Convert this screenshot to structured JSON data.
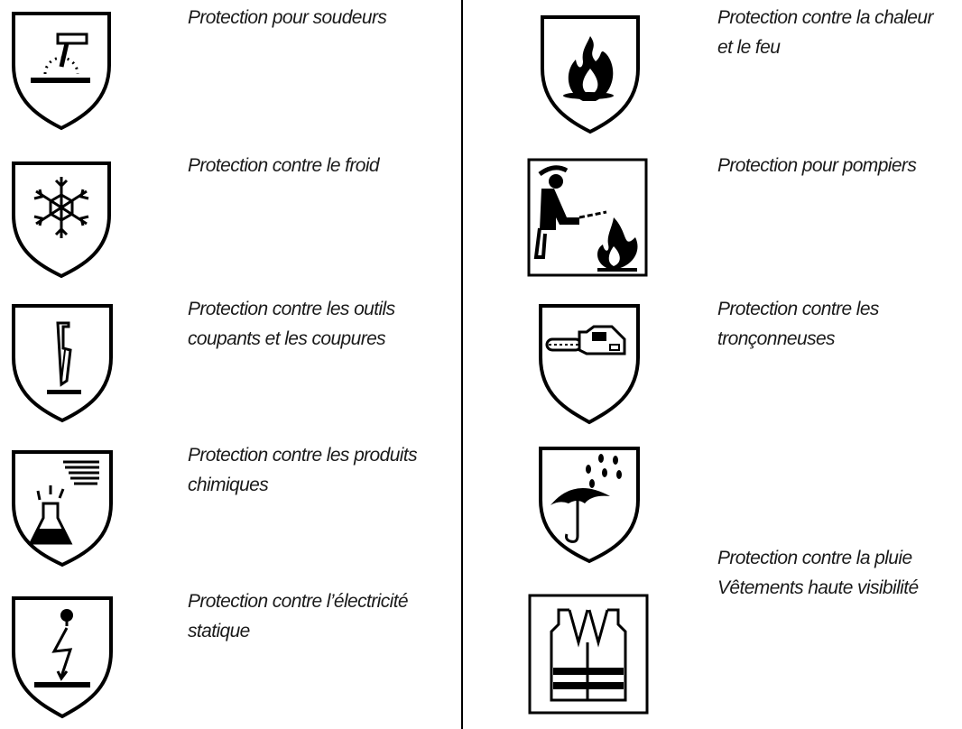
{
  "left_column": [
    {
      "icon": "welding-protection-icon",
      "lines": [
        "Protection pour soudeurs"
      ]
    },
    {
      "icon": "cold-protection-icon",
      "lines": [
        "Protection contre le froid"
      ]
    },
    {
      "icon": "cut-protection-icon",
      "lines": [
        "Protection contre les outils",
        "coupants et les coupures"
      ]
    },
    {
      "icon": "chemical-protection-icon",
      "lines": [
        "Protection contre les produits",
        "chimiques"
      ]
    },
    {
      "icon": "static-electricity-protection-icon",
      "lines": [
        "Protection contre l’électricité",
        "statique"
      ]
    }
  ],
  "right_column": [
    {
      "icon": "heat-flame-protection-icon",
      "lines": [
        "Protection contre la chaleur",
        "et le feu"
      ]
    },
    {
      "icon": "firefighter-protection-icon",
      "lines": [
        "Protection pour pompiers"
      ]
    },
    {
      "icon": "chainsaw-protection-icon",
      "lines": [
        "Protection contre les",
        "tronçonneuses"
      ]
    },
    {
      "icon": "rain-protection-icon"
    },
    {
      "icon": "high-visibility-vest-icon"
    }
  ],
  "shared_labels": {
    "lines": [
      "Protection contre la pluie",
      "Vêtements haute visibilité"
    ]
  }
}
